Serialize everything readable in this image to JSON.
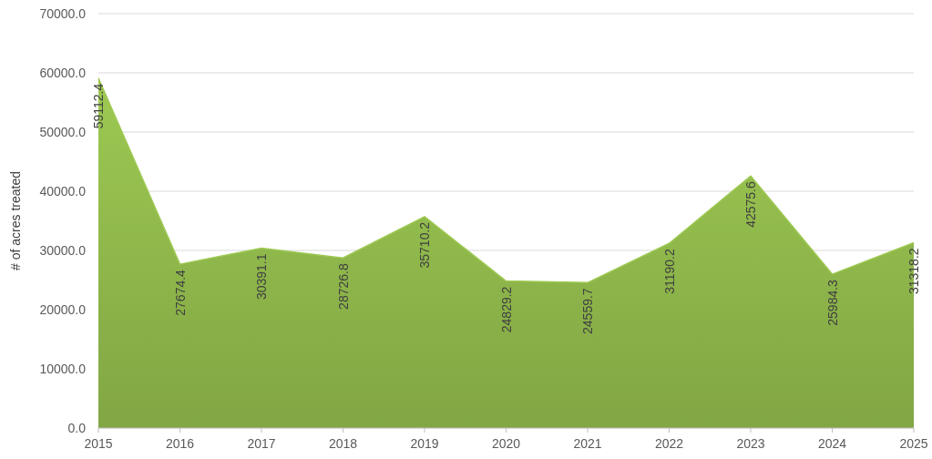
{
  "chart_data": {
    "type": "area",
    "ylabel": "# of acres treated",
    "categories": [
      "2015",
      "2016",
      "2017",
      "2018",
      "2019",
      "2020",
      "2021",
      "2022",
      "2023",
      "2024",
      "2025"
    ],
    "values": [
      59112.4,
      27674.4,
      30391.1,
      28726.8,
      35710.2,
      24829.2,
      24559.7,
      31190.2,
      42575.6,
      25984.3,
      31318.2
    ],
    "color": "#8db54a",
    "data_labels": true,
    "grid": "y",
    "ylim": [
      0,
      70000
    ],
    "yticks": [
      {
        "value": 0,
        "label": "0.0"
      },
      {
        "value": 10000,
        "label": "10000.0"
      },
      {
        "value": 20000,
        "label": "20000.0"
      },
      {
        "value": 30000,
        "label": "30000.0"
      },
      {
        "value": 40000,
        "label": "40000.0"
      },
      {
        "value": 50000,
        "label": "50000.0"
      },
      {
        "value": 60000,
        "label": "60000.0"
      },
      {
        "value": 70000,
        "label": "70000.0"
      }
    ]
  }
}
